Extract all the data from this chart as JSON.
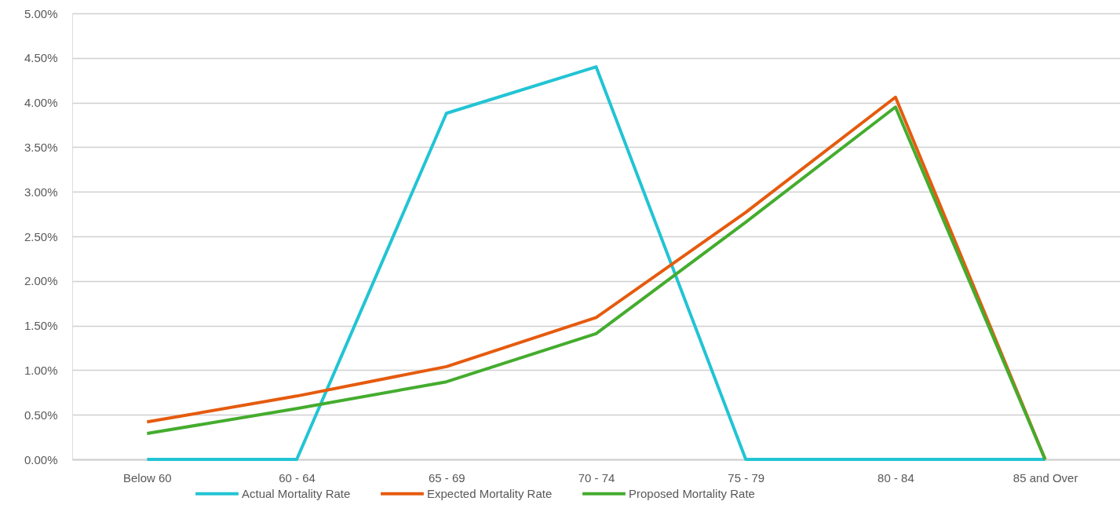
{
  "chart_data": {
    "type": "line",
    "categories": [
      "Below 60",
      "60 - 64",
      "65 - 69",
      "70 - 74",
      "75 - 79",
      "80 - 84",
      "85 and Over"
    ],
    "series": [
      {
        "name": "Actual Mortality Rate",
        "color": "#22c4d4",
        "values": [
          0,
          0,
          3.88,
          4.4,
          0,
          0,
          0
        ]
      },
      {
        "name": "Expected Mortality Rate",
        "color": "#e55b0e",
        "values": [
          0.42,
          0.71,
          1.04,
          1.59,
          2.77,
          4.06,
          0
        ]
      },
      {
        "name": "Proposed Mortality Rate",
        "color": "#44ac2e",
        "values": [
          0.29,
          0.57,
          0.87,
          1.41,
          2.66,
          3.95,
          0
        ]
      }
    ],
    "ylim": [
      0,
      5
    ],
    "yticks": [
      {
        "value": 0,
        "label": "0.00%"
      },
      {
        "value": 0.5,
        "label": "0.50%"
      },
      {
        "value": 1,
        "label": "1.00%"
      },
      {
        "value": 1.5,
        "label": "1.50%"
      },
      {
        "value": 2,
        "label": "2.00%"
      },
      {
        "value": 2.5,
        "label": "2.50%"
      },
      {
        "value": 3,
        "label": "3.00%"
      },
      {
        "value": 3.5,
        "label": "3.50%"
      },
      {
        "value": 4,
        "label": "4.00%"
      },
      {
        "value": 4.5,
        "label": "4.50%"
      },
      {
        "value": 5,
        "label": "5.00%"
      }
    ],
    "grid": "y",
    "legend": "bottom",
    "marker": "none",
    "line_style": "solid"
  }
}
